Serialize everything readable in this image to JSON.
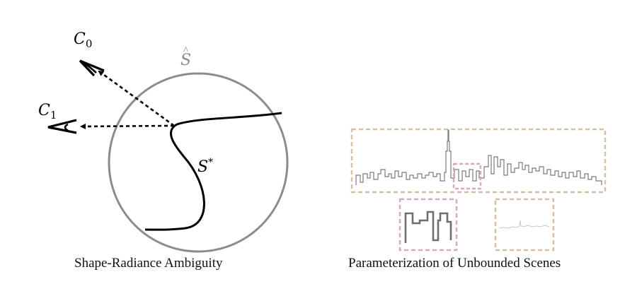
{
  "left_panel": {
    "caption": "Shape-Radiance Ambiguity",
    "surface_hat_label": "S",
    "hat_mark": "^",
    "true_surface_label": "S",
    "true_surface_superscript": "*",
    "cameras": [
      {
        "letter": "C",
        "index": "0"
      },
      {
        "letter": "C",
        "index": "1"
      }
    ],
    "colors": {
      "sphere": "#8c8c8c",
      "curve": "#000000",
      "rays": "#000000"
    }
  },
  "right_panel": {
    "caption": "Parameterization of Unbounded Scenes",
    "colors": {
      "outer_box": "#d9bfa6",
      "inner_box": "#d8a9c2",
      "skyline": "#7a7a7a",
      "far_skyline": "#c8c8c8"
    }
  }
}
